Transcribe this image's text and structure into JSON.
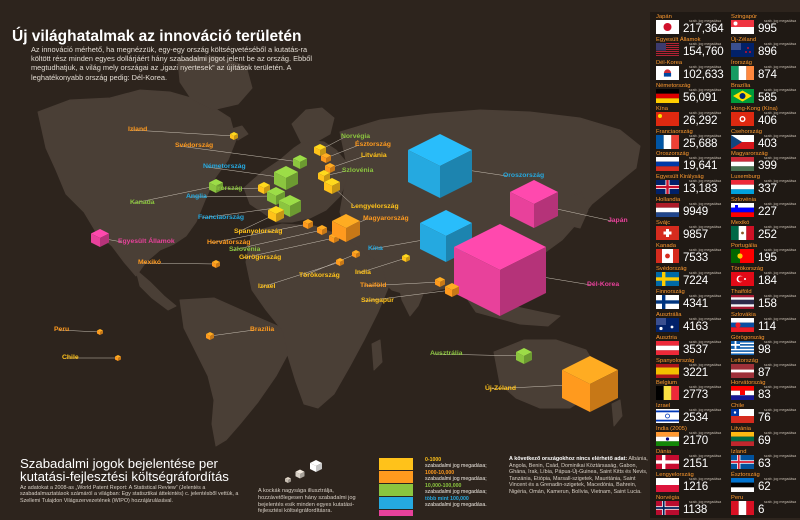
{
  "header": {
    "title": "Új világhatalmak az innováció területén",
    "intro": "Az innováció mérhető, ha megnézzük, egy-egy ország költségvetéséből a kutatás-ra költött rész minden egyes dollárjáért hány szabadalmi jogot jelent be az ország. Ebből megtudhatjuk, a világ mely országai az „igazi nyertesek” az újítások területén. A leghatékonyabb ország pedig: Dél-Korea."
  },
  "colors": {
    "background": "#2d241d",
    "orange": "#ff9a1e",
    "yellow": "#ffc21a",
    "green": "#8bc53f",
    "blue": "#25a9e0",
    "pink": "#e8419b"
  },
  "chart_data": {
    "type": "table",
    "title": "Új világhatalmak az innováció területén",
    "unit_label": "szab. jog megadása",
    "value_note": "Szabadalmi jogok bejelentése per kutatási-fejlesztési költségráfordítás",
    "countries": [
      {
        "name": "Japán",
        "value": "217,364",
        "flag": "japan"
      },
      {
        "name": "Egyesült Államok",
        "value": "154,760",
        "flag": "usa"
      },
      {
        "name": "Dél-Korea",
        "value": "102,633",
        "flag": "korea"
      },
      {
        "name": "Németország",
        "value": "56,091",
        "flag": "germany"
      },
      {
        "name": "Kína",
        "value": "26,292",
        "flag": "china"
      },
      {
        "name": "Franciaország",
        "value": "25,688",
        "flag": "france"
      },
      {
        "name": "Oroszország",
        "value": "19,641",
        "flag": "russia"
      },
      {
        "name": "Egyesült Királyság",
        "value": "13,183",
        "flag": "uk"
      },
      {
        "name": "Hollandia",
        "value": "9949",
        "flag": "netherlands"
      },
      {
        "name": "Svájc",
        "value": "9857",
        "flag": "switzerland"
      },
      {
        "name": "Kanada",
        "value": "7533",
        "flag": "canada"
      },
      {
        "name": "Svédország",
        "value": "7224",
        "flag": "sweden"
      },
      {
        "name": "Finnország",
        "value": "4341",
        "flag": "finland"
      },
      {
        "name": "Ausztrália",
        "value": "4163",
        "flag": "australia"
      },
      {
        "name": "Ausztria",
        "value": "3537",
        "flag": "austria"
      },
      {
        "name": "Spanyolország",
        "value": "3221",
        "flag": "spain"
      },
      {
        "name": "Belgium",
        "value": "2773",
        "flag": "belgium"
      },
      {
        "name": "Izrael",
        "value": "2534",
        "flag": "israel"
      },
      {
        "name": "India (2005)",
        "value": "2170",
        "flag": "india"
      },
      {
        "name": "Dánia",
        "value": "2151",
        "flag": "denmark"
      },
      {
        "name": "Lengyelország",
        "value": "1216",
        "flag": "poland"
      },
      {
        "name": "Norvégia",
        "value": "1138",
        "flag": "norway"
      },
      {
        "name": "Szingapúr",
        "value": "995",
        "flag": "singapore"
      },
      {
        "name": "Új-Zéland",
        "value": "896",
        "flag": "newzealand"
      },
      {
        "name": "Írország",
        "value": "874",
        "flag": "ireland"
      },
      {
        "name": "Brazília",
        "value": "585",
        "flag": "brazil"
      },
      {
        "name": "Hong-Kong (Kína)",
        "value": "406",
        "flag": "hongkong"
      },
      {
        "name": "Csehország",
        "value": "403",
        "flag": "czech"
      },
      {
        "name": "Magyarország",
        "value": "399",
        "flag": "hungary"
      },
      {
        "name": "Luxemburg",
        "value": "337",
        "flag": "luxembourg"
      },
      {
        "name": "Szlovénia",
        "value": "227",
        "flag": "slovenia"
      },
      {
        "name": "Mexikó",
        "value": "252",
        "flag": "mexico"
      },
      {
        "name": "Portugália",
        "value": "195",
        "flag": "portugal"
      },
      {
        "name": "Törökország",
        "value": "184",
        "flag": "turkey"
      },
      {
        "name": "Thaiföld",
        "value": "158",
        "flag": "thailand"
      },
      {
        "name": "Szlovákia",
        "value": "114",
        "flag": "slovakia"
      },
      {
        "name": "Görögország",
        "value": "98",
        "flag": "greece"
      },
      {
        "name": "Lettország",
        "value": "87",
        "flag": "latvia"
      },
      {
        "name": "Horvátország",
        "value": "83",
        "flag": "croatia"
      },
      {
        "name": "Chile",
        "value": "76",
        "flag": "chile"
      },
      {
        "name": "Litvánia",
        "value": "69",
        "flag": "lithuania"
      },
      {
        "name": "Izland",
        "value": "63",
        "flag": "iceland"
      },
      {
        "name": "Észtország",
        "value": "62",
        "flag": "estonia"
      },
      {
        "name": "Peru",
        "value": "6",
        "flag": "peru"
      }
    ]
  },
  "map_labels": [
    {
      "text": "Izland",
      "color": "#ff9a1e",
      "cube": "yellow",
      "size": 4
    },
    {
      "text": "Svédország",
      "color": "#ff9a1e",
      "cube": "green",
      "size": 7
    },
    {
      "text": "Norvégia",
      "color": "#8bc53f",
      "cube": "yellow",
      "size": 6
    },
    {
      "text": "Észtország",
      "color": "#ff9a1e",
      "cube": "orange",
      "size": 5
    },
    {
      "text": "Litvánia",
      "color": "#ffc21a",
      "cube": "orange",
      "size": 5
    },
    {
      "text": "Németország",
      "color": "#25a9e0",
      "cube": "green",
      "size": 12
    },
    {
      "text": "Szlovénia",
      "color": "#8bc53f",
      "cube": "yellow",
      "size": 6
    },
    {
      "text": "Írország",
      "color": "#8bc53f",
      "cube": "yellow",
      "size": 6
    },
    {
      "text": "Anglia",
      "color": "#25a9e0",
      "cube": "green",
      "size": 9
    },
    {
      "text": "Franciaország",
      "color": "#25a9e0",
      "cube": "green",
      "size": 11
    },
    {
      "text": "Spanyolország",
      "color": "#ffc21a",
      "cube": "yellow",
      "size": 8
    },
    {
      "text": "Horvátország",
      "color": "#ff9a1e",
      "cube": "orange",
      "size": 5
    },
    {
      "text": "Szlovénia",
      "color": "#8bc53f",
      "cube": "orange",
      "size": 5
    },
    {
      "text": "Görögország",
      "color": "#ffc21a",
      "cube": "orange",
      "size": 5
    },
    {
      "text": "Lengyelország",
      "color": "#ffc21a",
      "cube": "yellow",
      "size": 8
    },
    {
      "text": "Magyarország",
      "color": "#ff9a1e",
      "cube": "orange",
      "size": 14
    },
    {
      "text": "Oroszország",
      "color": "#25a9e0",
      "cube": "blue",
      "size": 32
    },
    {
      "text": "Kína",
      "color": "#25a9e0",
      "cube": "blue",
      "size": 26
    },
    {
      "text": "Japán",
      "color": "#e8419b",
      "cube": "pink",
      "size": 24
    },
    {
      "text": "Dél-Korea",
      "color": "#e8419b",
      "cube": "pink",
      "size": 46
    },
    {
      "text": "Kanada",
      "color": "#8bc53f",
      "cube": "green",
      "size": 7
    },
    {
      "text": "Egyesült Államok",
      "color": "#e8419b",
      "cube": "pink",
      "size": 9
    },
    {
      "text": "Mexikó",
      "color": "#ff9a1e",
      "cube": "orange",
      "size": 4
    },
    {
      "text": "Törökország",
      "color": "#ffc21a",
      "cube": "orange",
      "size": 4
    },
    {
      "text": "Izrael",
      "color": "#ffc21a",
      "cube": "orange",
      "size": 4
    },
    {
      "text": "India",
      "color": "#ffc21a",
      "cube": "yellow",
      "size": 4
    },
    {
      "text": "Thaiföld",
      "color": "#ff9a1e",
      "cube": "orange",
      "size": 5
    },
    {
      "text": "Szingapúr",
      "color": "#ffc21a",
      "cube": "orange",
      "size": 7
    },
    {
      "text": "Peru",
      "color": "#ff9a1e",
      "cube": "orange",
      "size": 3
    },
    {
      "text": "Brazília",
      "color": "#ff9a1e",
      "cube": "orange",
      "size": 4
    },
    {
      "text": "Chile",
      "color": "#ffc21a",
      "cube": "orange",
      "size": 3
    },
    {
      "text": "Ausztrália",
      "color": "#8bc53f",
      "cube": "green",
      "size": 8
    },
    {
      "text": "Új-Zéland",
      "color": "#ffc21a",
      "cube": "orange",
      "size": 28
    }
  ],
  "footer": {
    "title_line1": "Szabadalmi jogok bejelentése per",
    "title_line2": "kutatási-fejlesztési költségráfordítás",
    "source": "Az adatokat a 2008-as „World Patent Report: A Statistical Review” (Jelentés a szabadalmaztatások számáról a világban: Egy statisztikai áttekintés) c. jelentésből vettük, a Szellemi Tulajdon Világszervezetének (WIPO) hozzájárulásával.",
    "cube_note": "A kockák nagysága illusztrálja, hozzávetőlegesen hány szabadalmi jog bejelentés esik minden egyes kutatási-fejlesztési költségráfordításra."
  },
  "legend": [
    {
      "range": "0-1000",
      "label": "szabadalmi jog megadása;",
      "color": "#ffc21a"
    },
    {
      "range": "1000-10,000",
      "label": "szabadalmi jog megadása;",
      "color": "#ff9a1e"
    },
    {
      "range": "10,000-100,000",
      "label": "szabadalmi jog megadása;",
      "color": "#8bc53f"
    },
    {
      "range": "több mint 100,000",
      "label": "szabadalmi jog megadása.",
      "color": "#25a9e0"
    },
    {
      "range": "",
      "label": "",
      "color": "#e8419b"
    }
  ],
  "footnote": {
    "heading": "A következő országokhoz nincs elérhető adat:",
    "text": "Albánia, Angola, Benin, Csád, Dominikai Köztársaság, Gabon, Ghána, Irak, Líbia, Pápua-Új-Guinea, Saint Kitts és Nevis, Tanzánia, Etiópia, Marsall-szigetek, Mauritánia, Saint Vincent és a Grenadin-szigetek, Macedónia, Bahrein, Nigéria, Omán, Kamerun, Bolívia, Vietnam, Saint Lucia."
  }
}
